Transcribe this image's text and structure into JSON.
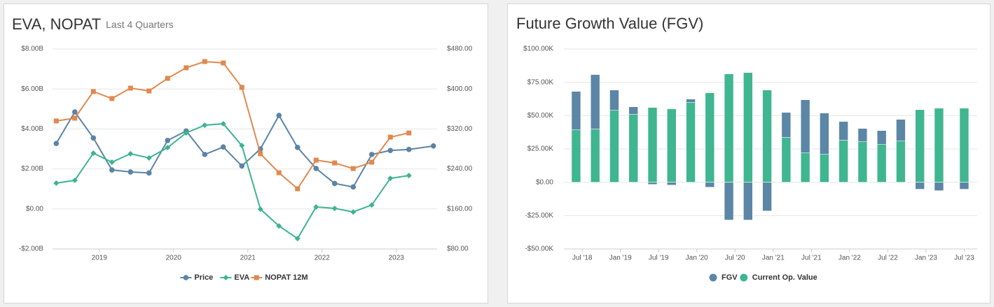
{
  "chart_data": [
    {
      "type": "line",
      "title": "EVA, NOPAT",
      "subtitle": "Last 4 Quarters",
      "x": [
        2018.42,
        2018.67,
        2018.92,
        2019.17,
        2019.42,
        2019.67,
        2019.92,
        2020.17,
        2020.42,
        2020.67,
        2020.92,
        2021.17,
        2021.42,
        2021.67,
        2021.92,
        2022.17,
        2022.42,
        2022.67,
        2022.92,
        2023.17,
        2023.5
      ],
      "xlim": [
        2018.37,
        2023.55
      ],
      "xticks": [
        2019,
        2020,
        2021,
        2022,
        2023
      ],
      "ylim": [
        -2,
        8
      ],
      "yticks": [
        {
          "value": -2,
          "label": "-$2.00B"
        },
        {
          "value": 0,
          "label": "$0.00"
        },
        {
          "value": 2,
          "label": "$2.00B"
        },
        {
          "value": 4,
          "label": "$4.00B"
        },
        {
          "value": 6,
          "label": "$6.00B"
        },
        {
          "value": 8,
          "label": "$8.00B"
        }
      ],
      "y2lim": [
        80,
        480
      ],
      "y2ticks": [
        {
          "value": 80,
          "label": "$80.00"
        },
        {
          "value": 160,
          "label": "$160.00"
        },
        {
          "value": 240,
          "label": "$240.00"
        },
        {
          "value": 320,
          "label": "$320.00"
        },
        {
          "value": 400,
          "label": "$400.00"
        },
        {
          "value": 480,
          "label": "$480.00"
        }
      ],
      "grid": true,
      "series": [
        {
          "name": "Price",
          "color": "#5b84a6",
          "marker": "circle",
          "axis": "y2",
          "values": [
            291,
            354,
            302,
            238,
            234,
            232,
            297,
            316,
            269,
            284,
            246,
            280,
            347,
            283,
            241,
            211,
            204,
            269,
            277,
            279,
            286
          ]
        },
        {
          "name": "EVA",
          "color": "#3db48f",
          "marker": "diamond",
          "values": [
            1.29,
            1.43,
            2.79,
            2.34,
            2.76,
            2.55,
            3.07,
            3.8,
            4.19,
            4.26,
            3.17,
            -0.01,
            -0.85,
            -1.48,
            0.1,
            0.03,
            -0.15,
            0.2,
            1.53,
            1.67,
            null
          ]
        },
        {
          "name": "NOPAT 12M",
          "color": "#e0894f",
          "marker": "square",
          "values": [
            4.4,
            4.54,
            5.87,
            5.52,
            6.04,
            5.9,
            6.53,
            7.06,
            7.37,
            7.3,
            6.08,
            2.76,
            1.81,
            1.01,
            2.44,
            2.3,
            2.02,
            2.34,
            3.59,
            3.8,
            null
          ]
        }
      ]
    },
    {
      "type": "bar",
      "title": "Future Growth Value (FGV)",
      "stacked": true,
      "x": [
        2018.42,
        2018.67,
        2018.92,
        2019.17,
        2019.42,
        2019.67,
        2019.92,
        2020.17,
        2020.42,
        2020.67,
        2020.92,
        2021.17,
        2021.42,
        2021.67,
        2021.92,
        2022.17,
        2022.42,
        2022.67,
        2022.92,
        2023.17,
        2023.5
      ],
      "xlim": [
        2018.26,
        2023.67
      ],
      "xticks": [
        {
          "value": 2018.5,
          "label": "Jul '18"
        },
        {
          "value": 2019,
          "label": "Jan '19"
        },
        {
          "value": 2019.5,
          "label": "Jul '19"
        },
        {
          "value": 2020,
          "label": "Jan '20"
        },
        {
          "value": 2020.5,
          "label": "Jul '20"
        },
        {
          "value": 2021,
          "label": "Jan '21"
        },
        {
          "value": 2021.5,
          "label": "Jul '21"
        },
        {
          "value": 2022,
          "label": "Jan '22"
        },
        {
          "value": 2022.5,
          "label": "Jul '22"
        },
        {
          "value": 2023,
          "label": "Jan '23"
        },
        {
          "value": 2023.5,
          "label": "Jul '23"
        }
      ],
      "ylim": [
        -50,
        100
      ],
      "yticks": [
        {
          "value": -50,
          "label": "-$50.00K"
        },
        {
          "value": -25,
          "label": "-$25.00K"
        },
        {
          "value": 0,
          "label": "$0.00"
        },
        {
          "value": 25,
          "label": "$25.00K"
        },
        {
          "value": 50,
          "label": "$50.00K"
        },
        {
          "value": 75,
          "label": "$75.00K"
        },
        {
          "value": 100,
          "label": "$100.00K"
        }
      ],
      "grid": true,
      "series": [
        {
          "name": "FGV",
          "color": "#5b86a6",
          "values": [
            28.9,
            40.9,
            15.2,
            5.7,
            -1.6,
            -2.1,
            2.6,
            -3.7,
            -28.3,
            -28.3,
            -21.5,
            18.8,
            39.9,
            30.9,
            14.1,
            10,
            10.5,
            16.3,
            -5.2,
            -6.3,
            -5.2
          ]
        },
        {
          "name": "Current Op. Value",
          "color": "#3fb68f",
          "values": [
            39.3,
            39.9,
            54,
            50.9,
            56.1,
            55.1,
            59.8,
            67.1,
            81.3,
            82.3,
            69.2,
            33.6,
            22,
            21,
            31.5,
            30.4,
            28.3,
            30.9,
            54.5,
            55.6,
            55.6
          ]
        }
      ]
    }
  ]
}
